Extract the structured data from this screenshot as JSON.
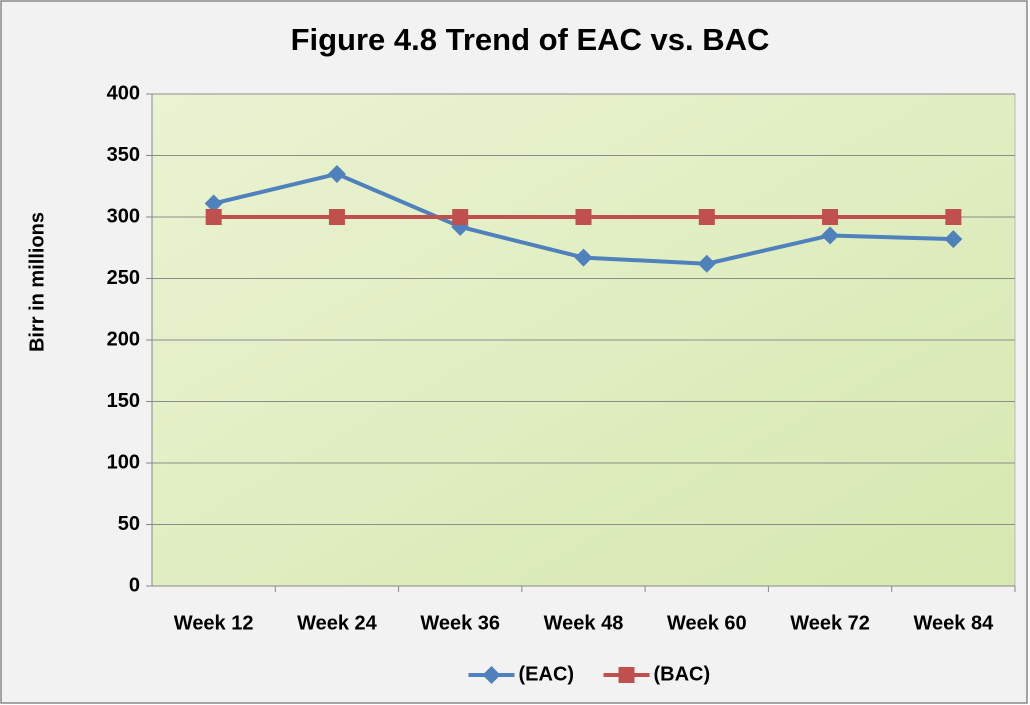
{
  "chart_data": {
    "type": "line",
    "title": "Figure 4.8  Trend of  EAC vs. BAC",
    "ylabel": "Birr in millions",
    "categories": [
      "Week 12",
      "Week 24",
      "Week 36",
      "Week 48",
      "Week 60",
      "Week 72",
      "Week 84"
    ],
    "series": [
      {
        "name": "(EAC)",
        "color": "#4f81bd",
        "marker": "diamond",
        "values": [
          311,
          335,
          292,
          267,
          262,
          285,
          282
        ]
      },
      {
        "name": "(BAC)",
        "color": "#c0504d",
        "marker": "square",
        "values": [
          300,
          300,
          300,
          300,
          300,
          300,
          300
        ]
      }
    ],
    "ylim": [
      0,
      400
    ],
    "yticks": [
      0,
      50,
      100,
      150,
      200,
      250,
      300,
      350,
      400
    ],
    "grid": true,
    "legend": "bottom"
  }
}
